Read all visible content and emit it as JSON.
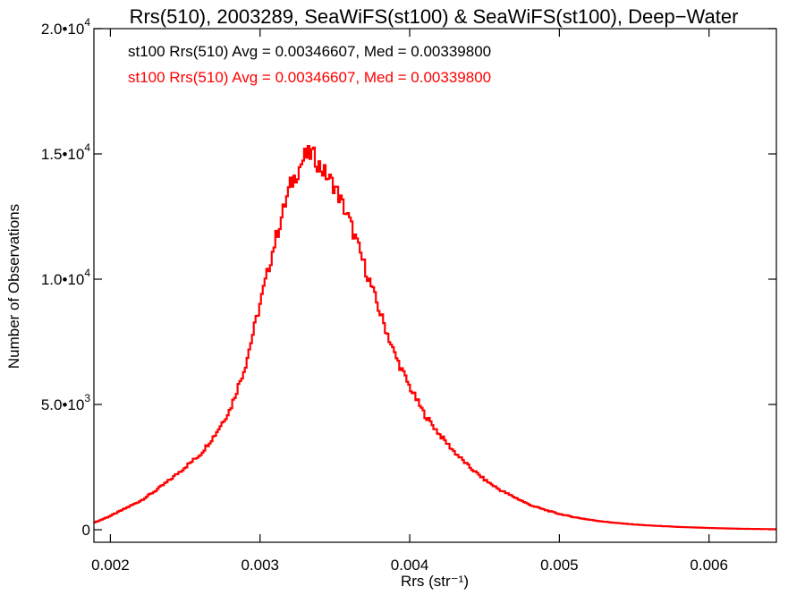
{
  "chart_data": {
    "type": "histogram",
    "title": "Rrs(510), 2003289, SeaWiFS(st100) & SeaWiFS(st100), Deep−Water",
    "xlabel": "Rrs (str⁻¹)",
    "ylabel": "Number of Observations",
    "xlim": [
      0.00189,
      0.00645
    ],
    "ylim": [
      -500,
      20000
    ],
    "x_ticks": [
      0.002,
      0.003,
      0.004,
      0.005,
      0.006
    ],
    "x_tick_labels": [
      "0.002",
      "0.003",
      "0.004",
      "0.005",
      "0.006"
    ],
    "y_ticks": [
      0,
      5000,
      10000,
      15000,
      20000
    ],
    "y_tick_labels": [
      {
        "mantissa": "0",
        "exponent": ""
      },
      {
        "mantissa": "5.0•10",
        "exponent": "3"
      },
      {
        "mantissa": "1.0•10",
        "exponent": "4"
      },
      {
        "mantissa": "1.5•10",
        "exponent": "4"
      },
      {
        "mantissa": "2.0•10",
        "exponent": "4"
      }
    ],
    "annotations": [
      {
        "text": "st100 Rrs(510) Avg = 0.00346607, Med = 0.00339800",
        "color": "#000000"
      },
      {
        "text": "st100 Rrs(510) Avg = 0.00346607, Med = 0.00339800",
        "color": "#ff0000"
      }
    ],
    "series": [
      {
        "color": "#ff0000",
        "x": [
          0.0019,
          0.002,
          0.0021,
          0.0022,
          0.0023,
          0.0024,
          0.0025,
          0.0026,
          0.0027,
          0.0028,
          0.0029,
          0.003,
          0.0031,
          0.0032,
          0.0033,
          0.00335,
          0.0034,
          0.0035,
          0.0036,
          0.0037,
          0.0038,
          0.0039,
          0.004,
          0.0041,
          0.0042,
          0.0043,
          0.0044,
          0.0045,
          0.0046,
          0.0047,
          0.0048,
          0.0049,
          0.005,
          0.0051,
          0.0052,
          0.0053,
          0.0054,
          0.0055,
          0.0056,
          0.0057,
          0.0058,
          0.006,
          0.0062,
          0.00645
        ],
        "y": [
          300,
          550,
          850,
          1150,
          1550,
          2000,
          2500,
          3000,
          3800,
          4800,
          6500,
          9000,
          11500,
          13700,
          14900,
          15000,
          14500,
          13700,
          12300,
          10500,
          8700,
          7000,
          5700,
          4600,
          3800,
          3100,
          2500,
          2000,
          1600,
          1300,
          1000,
          800,
          630,
          500,
          400,
          320,
          260,
          210,
          170,
          140,
          110,
          70,
          40,
          20
        ]
      }
    ]
  }
}
